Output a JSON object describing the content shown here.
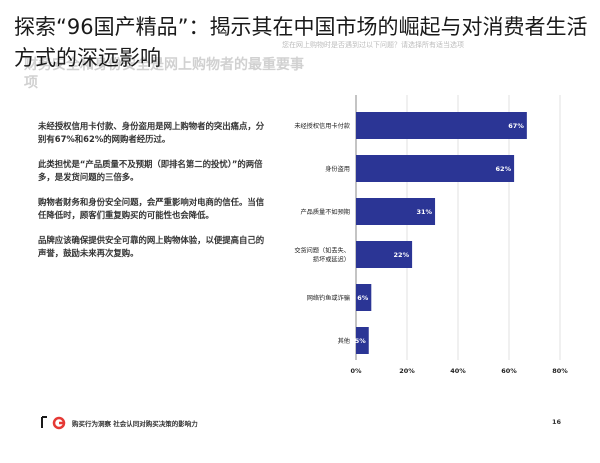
{
  "headline": "探索“96国产精品”：揭示其在中国市场的崛起与对消费者生活方式的深远影响",
  "slide": {
    "title": "财务安全和身份安全是网上购物者的最重要事项",
    "question": "您在网上购物时是否遇到过以下问题？请选择所有适当选项",
    "paragraphs": [
      "未经授权信用卡付款、身份盗用是网上购物者的突出痛点，分别有67%和62%的网购者经历过。",
      "此类担忧是“产品质量不及预期（即排名第二的投忧）”的两倍多，是发货问题的三倍多。",
      "购物者财务和身份安全问题，会严重影响对电商的信任。当信任降低时，顾客们重复购买的可能性也会降低。",
      "品牌应该确保提供安全可靠的网上购物体验，以便提高自己的声誉，鼓励未来再次复购。"
    ],
    "footer_text": "购买行为洞察  社会认同对购买决策的影响力",
    "page_number": "16",
    "bar_color": "#2b3595"
  },
  "chart_data": {
    "type": "bar",
    "orientation": "horizontal",
    "categories": [
      "未经授权信用卡付款",
      "身份盗用",
      "产品质量不如预期",
      "交货问题（包裹丢失、损坏或延迟）",
      "网络钓鱼或诈骗",
      "其他"
    ],
    "category_lines": [
      [
        "未经授权信用卡付款"
      ],
      [
        "身份盗用"
      ],
      [
        "产品质量不如预期"
      ],
      [
        "交货问题（如丢失、",
        "损坏或延迟）"
      ],
      [
        "网络钓鱼或诈骗"
      ],
      [
        "其他"
      ]
    ],
    "values": [
      67,
      62,
      31,
      22,
      6,
      5
    ],
    "value_labels": [
      "67%",
      "62%",
      "31%",
      "22%",
      "6%",
      "5%"
    ],
    "xlim": [
      0,
      80
    ],
    "xticks": [
      0,
      20,
      40,
      60,
      80
    ],
    "xtick_labels": [
      "0%",
      "20%",
      "40%",
      "60%",
      "80%"
    ],
    "grid": true
  }
}
